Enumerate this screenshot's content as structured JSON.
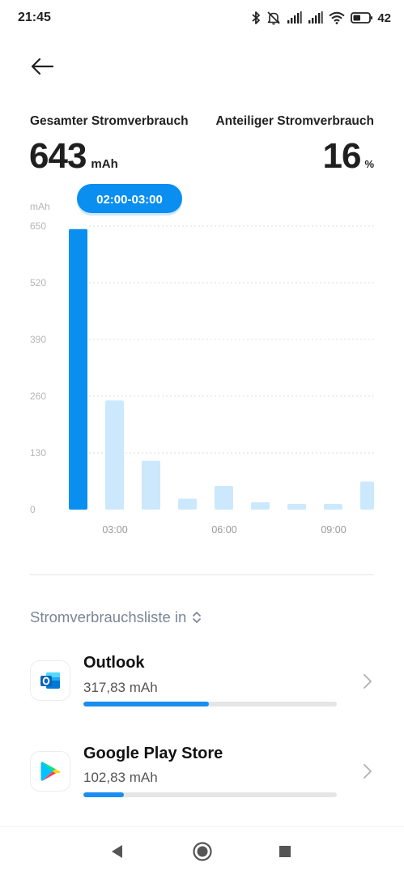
{
  "status": {
    "time": "21:45",
    "battery_percent": "42",
    "icons": [
      "bluetooth-icon",
      "silent-icon",
      "signal-icon",
      "signal-icon",
      "wifi-icon",
      "battery-icon"
    ]
  },
  "header": {
    "back_icon": "arrow-left-icon"
  },
  "summary": {
    "total_label": "Gesamter Stromverbrauch",
    "total_value": "643",
    "total_unit": "mAh",
    "share_label": "Anteiliger Stromverbrauch",
    "share_value": "16",
    "share_unit": "%"
  },
  "chart_data": {
    "type": "bar",
    "ylabel": "mAh",
    "ylim": [
      0,
      650
    ],
    "yticks": [
      "650",
      "520",
      "390",
      "260",
      "130",
      "0"
    ],
    "xticks": [
      "03:00",
      "06:00",
      "09:00"
    ],
    "selected_label": "02:00-03:00",
    "selected_index": 0,
    "values": [
      643,
      250,
      112,
      25,
      54,
      17,
      13,
      13,
      64
    ],
    "colors": {
      "selected": "#0a8ef0",
      "normal": "#cbe8fd",
      "grid": "#dedede",
      "tick": "#b5b5b5"
    }
  },
  "list": {
    "header": "Stromverbrauchsliste in",
    "header_icon": "sort-updown-icon",
    "items": [
      {
        "name": "Outlook",
        "usage": "317,83 mAh",
        "fraction": 0.4946,
        "icon": "outlook-icon"
      },
      {
        "name": "Google Play Store",
        "usage": "102,83 mAh",
        "fraction": 0.16,
        "icon": "play-store-icon"
      }
    ]
  },
  "nav": {
    "back": "nav-back-icon",
    "home": "nav-home-icon",
    "recents": "nav-recents-icon"
  }
}
